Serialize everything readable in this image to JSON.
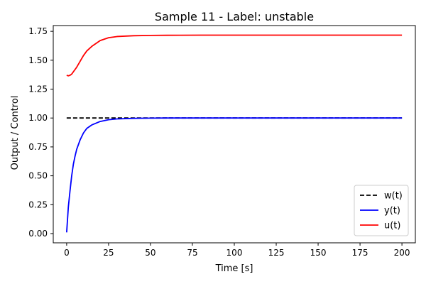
{
  "chart_data": {
    "type": "line",
    "title": "Sample 11 - Label: unstable",
    "xlabel": "Time [s]",
    "ylabel": "Output / Control",
    "xlim": [
      -8,
      208
    ],
    "ylim": [
      -0.08,
      1.8
    ],
    "xticks": [
      0,
      25,
      50,
      75,
      100,
      125,
      150,
      175,
      200
    ],
    "xtick_labels": [
      "0",
      "25",
      "50",
      "75",
      "100",
      "125",
      "150",
      "175",
      "200"
    ],
    "yticks": [
      0.0,
      0.25,
      0.5,
      0.75,
      1.0,
      1.25,
      1.5,
      1.75
    ],
    "ytick_labels": [
      "0.00",
      "0.25",
      "0.50",
      "0.75",
      "1.00",
      "1.25",
      "1.50",
      "1.75"
    ],
    "grid": false,
    "legend_position": "bottom-right",
    "series": [
      {
        "name": "w(t)",
        "color": "#000000",
        "dash": "dashed",
        "x": [
          0,
          200
        ],
        "y": [
          1.0,
          1.0
        ]
      },
      {
        "name": "y(t)",
        "color": "#0000ff",
        "dash": "solid",
        "x": [
          0,
          1,
          2,
          3,
          4,
          5,
          6,
          8,
          10,
          12,
          15,
          20,
          25,
          30,
          40,
          50,
          60,
          80,
          100,
          150,
          200
        ],
        "y": [
          0.01,
          0.23,
          0.37,
          0.5,
          0.6,
          0.67,
          0.73,
          0.81,
          0.87,
          0.91,
          0.94,
          0.97,
          0.985,
          0.992,
          0.997,
          0.999,
          1.0,
          1.0,
          1.0,
          1.0,
          1.0
        ]
      },
      {
        "name": "u(t)",
        "color": "#ff0000",
        "dash": "solid",
        "x": [
          0,
          1,
          2,
          3,
          4,
          6,
          8,
          10,
          12,
          15,
          20,
          25,
          30,
          40,
          50,
          60,
          80,
          100,
          150,
          200
        ],
        "y": [
          1.37,
          1.365,
          1.37,
          1.38,
          1.4,
          1.44,
          1.49,
          1.54,
          1.58,
          1.62,
          1.67,
          1.695,
          1.705,
          1.712,
          1.715,
          1.716,
          1.717,
          1.717,
          1.717,
          1.717
        ]
      }
    ]
  }
}
